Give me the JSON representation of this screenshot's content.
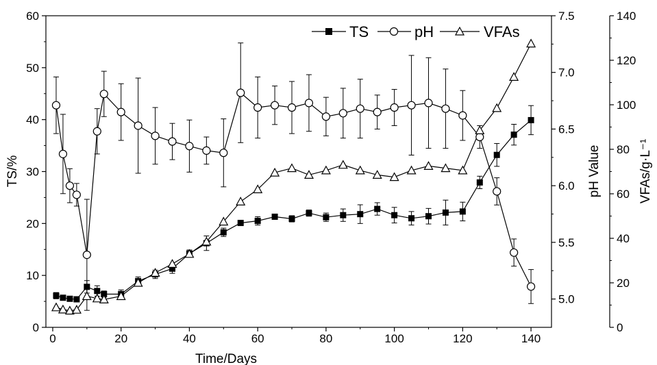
{
  "chart_data": {
    "type": "line",
    "title": "",
    "grid": false,
    "legend_position": "top-right",
    "xlabel": "Time/Days",
    "xlim": [
      -2,
      146
    ],
    "xticks": [
      0,
      20,
      40,
      60,
      80,
      100,
      120,
      140
    ],
    "axes": {
      "left": {
        "label": "TS/%",
        "lim": [
          0,
          60
        ],
        "ticks": [
          0,
          10,
          20,
          30,
          40,
          50,
          60
        ]
      },
      "right1": {
        "label": "pH Value",
        "lim": [
          4.75,
          7.5
        ],
        "ticks": [
          5.0,
          5.5,
          6.0,
          6.5,
          7.0,
          7.5
        ]
      },
      "right2": {
        "label": "VFAs/g·L⁻¹",
        "lim": [
          0,
          140
        ],
        "ticks": [
          0,
          20,
          40,
          60,
          80,
          100,
          120,
          140
        ]
      }
    },
    "series": [
      {
        "name": "TS",
        "axis": "left",
        "marker": "filled-square",
        "x": [
          1,
          3,
          5,
          7,
          10,
          13,
          15,
          20,
          25,
          30,
          35,
          40,
          45,
          50,
          55,
          60,
          65,
          70,
          75,
          80,
          85,
          90,
          95,
          100,
          105,
          110,
          115,
          120,
          125,
          130,
          135,
          140
        ],
        "y": [
          6.1,
          5.7,
          5.5,
          5.4,
          7.8,
          7.0,
          6.4,
          6.4,
          8.9,
          10.2,
          11.3,
          14.2,
          16.2,
          18.3,
          20.1,
          20.5,
          21.3,
          20.9,
          22.0,
          21.2,
          21.6,
          21.8,
          22.8,
          21.6,
          21.0,
          21.4,
          22.1,
          22.3,
          27.9,
          33.2,
          37.1,
          39.9
        ],
        "err": [
          0.6,
          0.4,
          0.4,
          0.4,
          1.2,
          1.0,
          0.6,
          0.8,
          0.8,
          0.8,
          0.9,
          0.7,
          1.4,
          0.8,
          0.3,
          0.8,
          0.5,
          0.6,
          0.6,
          0.8,
          1.2,
          1.8,
          1.2,
          1.5,
          1.3,
          1.5,
          2.4,
          1.8,
          1.2,
          2.2,
          2.0,
          2.8
        ]
      },
      {
        "name": "pH",
        "axis": "right1",
        "marker": "open-circle",
        "x": [
          1,
          3,
          5,
          7,
          10,
          13,
          15,
          20,
          25,
          30,
          35,
          40,
          45,
          50,
          55,
          60,
          65,
          70,
          75,
          80,
          85,
          90,
          95,
          100,
          105,
          110,
          115,
          120,
          125,
          130,
          135,
          140
        ],
        "y": [
          6.71,
          6.28,
          6.0,
          5.92,
          5.39,
          6.48,
          6.81,
          6.65,
          6.53,
          6.44,
          6.39,
          6.35,
          6.31,
          6.29,
          6.82,
          6.69,
          6.71,
          6.69,
          6.73,
          6.61,
          6.64,
          6.68,
          6.65,
          6.69,
          6.71,
          6.73,
          6.68,
          6.62,
          6.43,
          5.95,
          5.41,
          5.11
        ],
        "err": [
          0.25,
          0.35,
          0.15,
          0.1,
          0.49,
          0.2,
          0.2,
          0.25,
          0.42,
          0.25,
          0.16,
          0.23,
          0.12,
          0.3,
          0.44,
          0.27,
          0.17,
          0.23,
          0.25,
          0.17,
          0.22,
          0.26,
          0.15,
          0.16,
          0.44,
          0.4,
          0.35,
          0.22,
          0.1,
          0.12,
          0.12,
          0.15
        ]
      },
      {
        "name": "VFAs",
        "axis": "right2",
        "marker": "open-triangle",
        "x": [
          1,
          3,
          5,
          7,
          10,
          13,
          15,
          20,
          25,
          30,
          35,
          40,
          45,
          50,
          55,
          60,
          65,
          70,
          75,
          80,
          85,
          90,
          95,
          100,
          105,
          110,
          115,
          120,
          125,
          130,
          135,
          140
        ],
        "y": [
          9.0,
          8.0,
          7.5,
          7.9,
          14.0,
          13.0,
          12.5,
          14.0,
          20.0,
          24.5,
          28.5,
          33.0,
          38.5,
          47.5,
          56.5,
          62.0,
          69.5,
          71.5,
          68.5,
          70.5,
          73.0,
          70.5,
          68.5,
          67.5,
          70.5,
          72.5,
          71.5,
          70.5,
          88.5,
          98.5,
          112.5,
          127.5
        ]
      }
    ]
  }
}
